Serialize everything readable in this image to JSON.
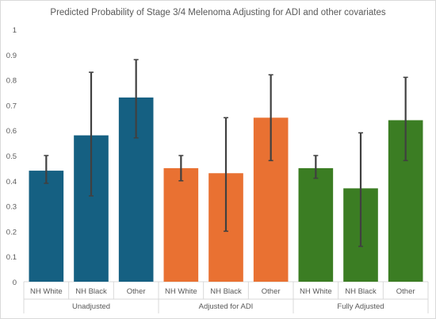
{
  "chart_data": {
    "type": "bar",
    "title": "Predicted Probability of Stage 3/4 Melenoma Adjusting for ADI and other covariates",
    "xlabel": "",
    "ylabel": "",
    "ylim": [
      0,
      1
    ],
    "yticks": [
      "0",
      "0.1",
      "0.2",
      "0.3",
      "0.4",
      "0.5",
      "0.6",
      "0.7",
      "0.8",
      "0.9",
      "1"
    ],
    "grid": false,
    "legend": "none",
    "groups": [
      {
        "name": "Unadjusted",
        "color": "#156082",
        "categories": [
          "NH White",
          "NH Black",
          "Other"
        ],
        "values": [
          0.44,
          0.58,
          0.73
        ],
        "error_low": [
          0.39,
          0.34,
          0.57
        ],
        "error_high": [
          0.5,
          0.83,
          0.88
        ]
      },
      {
        "name": "Adjusted for ADI",
        "color": "#E97132",
        "categories": [
          "NH White",
          "NH Black",
          "Other"
        ],
        "values": [
          0.45,
          0.43,
          0.65
        ],
        "error_low": [
          0.4,
          0.2,
          0.48
        ],
        "error_high": [
          0.5,
          0.65,
          0.82
        ]
      },
      {
        "name": "Fully Adjusted",
        "color": "#3B7D23",
        "categories": [
          "NH White",
          "NH Black",
          "Other"
        ],
        "values": [
          0.45,
          0.37,
          0.64
        ],
        "error_low": [
          0.41,
          0.14,
          0.48
        ],
        "error_high": [
          0.5,
          0.59,
          0.81
        ]
      }
    ],
    "error_bar_color": "#404040",
    "axis_color": "#d9d9d9"
  }
}
